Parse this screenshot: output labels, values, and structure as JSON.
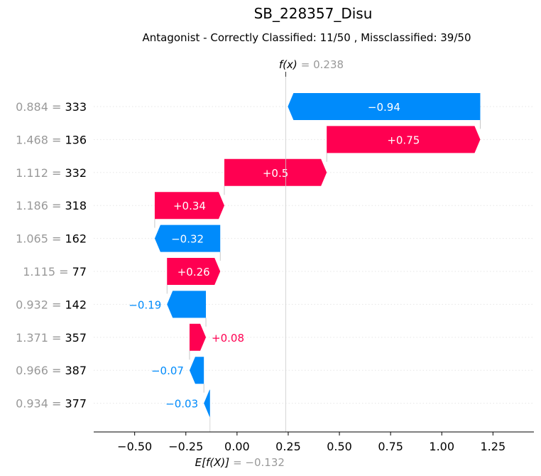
{
  "chart_data": {
    "type": "waterfall",
    "title": "SB_228357_Disu",
    "subtitle": "Antagonist - Correctly Classified: 11/50 , Missclassified: 39/50",
    "fx_label": "f(x)",
    "fx_value": "= 0.238",
    "fx": 0.238,
    "ex_label": "E[f(X)]",
    "ex_value": "= −0.132",
    "ex": -0.132,
    "xlim": [
      -0.7,
      1.45
    ],
    "xticks": [
      {
        "value": -0.5,
        "label": "−0.50"
      },
      {
        "value": -0.25,
        "label": "−0.25"
      },
      {
        "value": 0.0,
        "label": "0.00"
      },
      {
        "value": 0.25,
        "label": "0.25"
      },
      {
        "value": 0.5,
        "label": "0.50"
      },
      {
        "value": 0.75,
        "label": "0.75"
      },
      {
        "value": 1.0,
        "label": "1.00"
      },
      {
        "value": 1.25,
        "label": "1.25"
      }
    ],
    "features": [
      {
        "value": "0.884 =",
        "name": "333",
        "contribution": -0.94,
        "label": "−0.94"
      },
      {
        "value": "1.468 =",
        "name": "136",
        "contribution": 0.75,
        "label": "+0.75"
      },
      {
        "value": "1.112 =",
        "name": "332",
        "contribution": 0.5,
        "label": "+0.5"
      },
      {
        "value": "1.186 =",
        "name": "318",
        "contribution": 0.34,
        "label": "+0.34"
      },
      {
        "value": "1.065 =",
        "name": "162",
        "contribution": -0.32,
        "label": "−0.32"
      },
      {
        "value": "1.115 =",
        "name": "77",
        "contribution": 0.26,
        "label": "+0.26"
      },
      {
        "value": "0.932 =",
        "name": "142",
        "contribution": -0.19,
        "label": "−0.19"
      },
      {
        "value": "1.371 =",
        "name": "357",
        "contribution": 0.08,
        "label": "+0.08"
      },
      {
        "value": "0.966 =",
        "name": "387",
        "contribution": -0.07,
        "label": "−0.07"
      },
      {
        "value": "0.934 =",
        "name": "377",
        "contribution": -0.03,
        "label": "−0.03"
      }
    ],
    "colors": {
      "positive": "#ff0051",
      "negative": "#008bfb",
      "muted": "#999999",
      "text": "#000000"
    }
  }
}
